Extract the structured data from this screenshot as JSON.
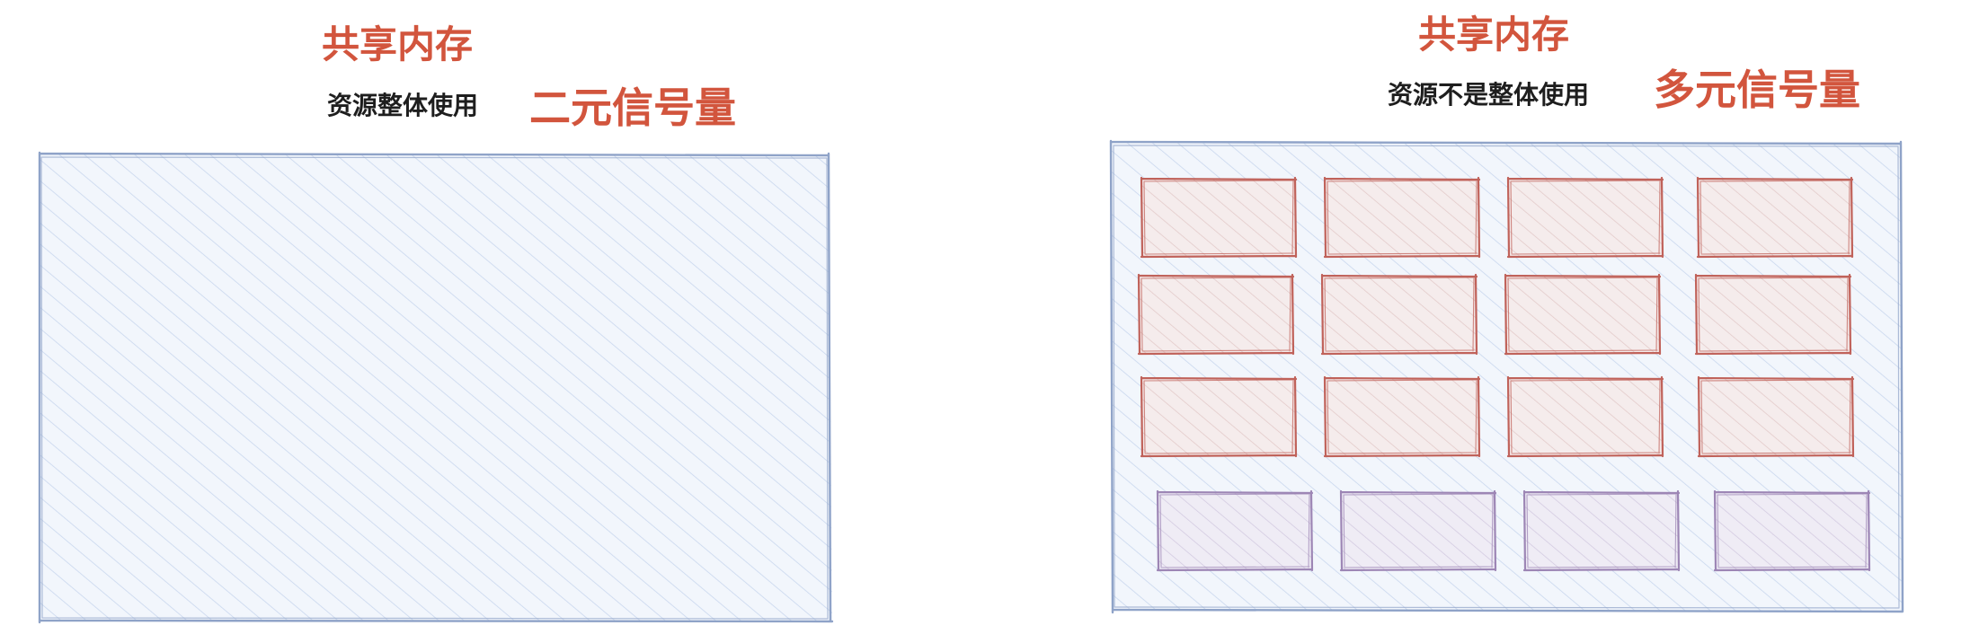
{
  "colors": {
    "accent_red": "#d2553d",
    "text_dark": "#1e1e1e",
    "memory_stroke": "#8fa3c8",
    "memory_fill": "#eaf1fb",
    "red_block_stroke": "#c0625a",
    "red_block_fill": "#f3e7e7",
    "purple_block_stroke": "#9d86b5",
    "purple_block_fill": "#eae7f1"
  },
  "left": {
    "title": "共享内存",
    "subtitle": "资源整体使用",
    "semaphore": "二元信号量"
  },
  "right": {
    "title": "共享内存",
    "subtitle": "资源不是整体使用",
    "semaphore": "多元信号量",
    "grid": {
      "red_rows": 3,
      "purple_rows": 1,
      "columns": 4
    }
  }
}
